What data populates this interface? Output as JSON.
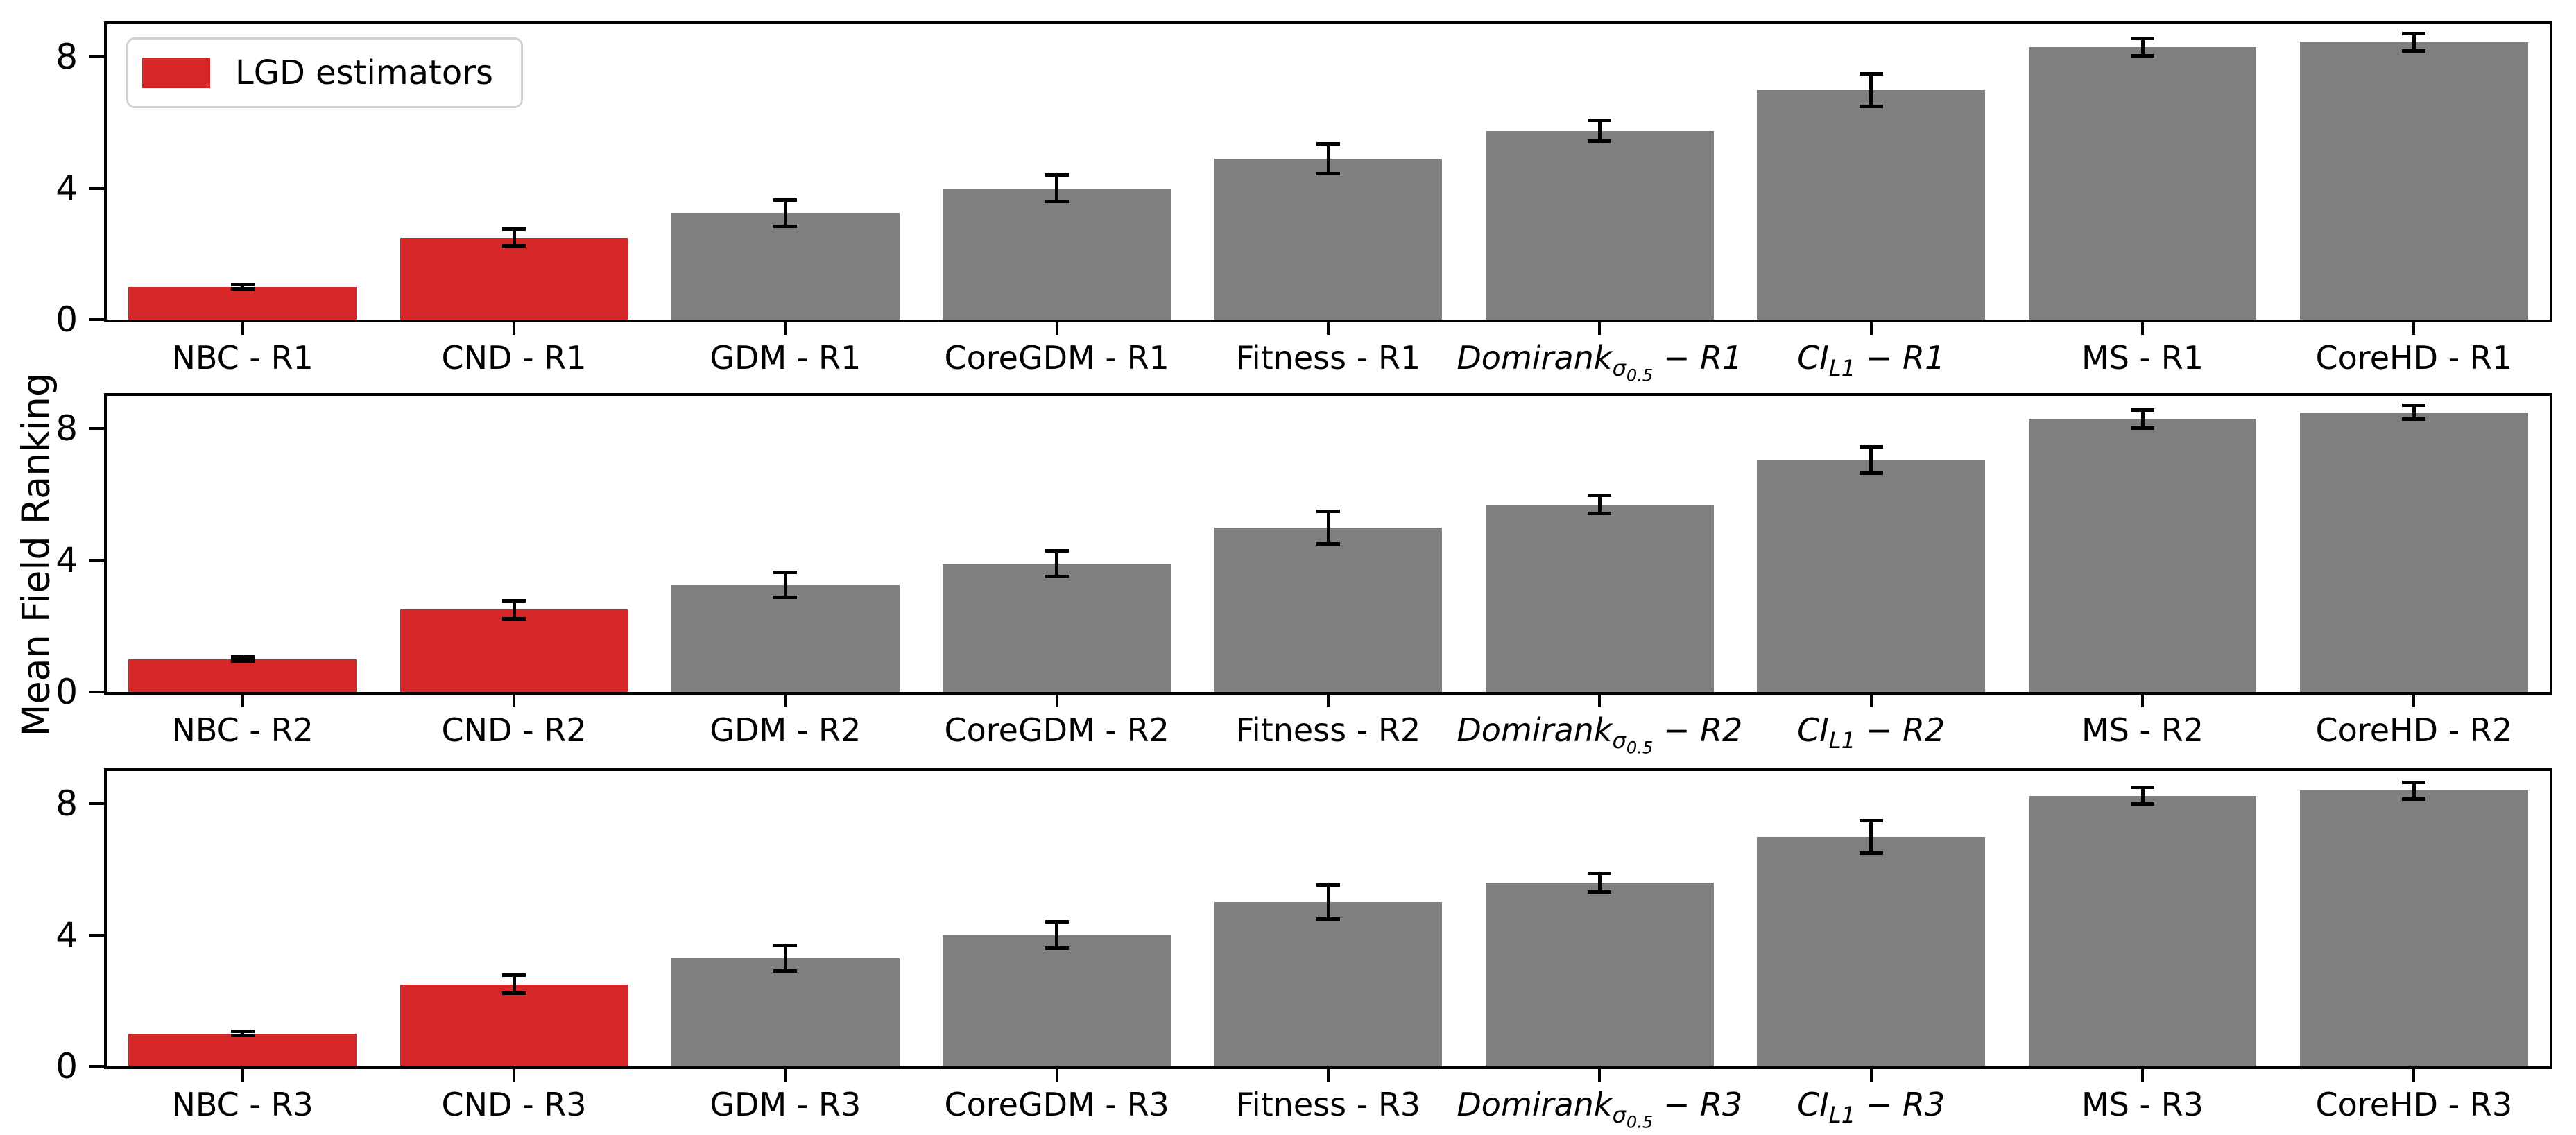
{
  "ylabel": "Mean Field Ranking",
  "legend": {
    "label": "LGD estimators",
    "swatch_color": "#d62728"
  },
  "colors": {
    "lgd_bar": "#d62728",
    "other_bar": "#7f7f7f",
    "axis": "#000000",
    "error_bar": "#000000",
    "legend_border": "#d2d2d2",
    "background": "#ffffff"
  },
  "chart_data": {
    "type": "bar",
    "title": "",
    "ylabel": "Mean Field Ranking",
    "xlabel": "",
    "ylim": [
      0,
      9.0
    ],
    "yticks": [
      0,
      4,
      8
    ],
    "grid": false,
    "legend": {
      "label": "LGD estimators",
      "color": "#d62728",
      "position": "upper left of first panel"
    },
    "panels": [
      {
        "name": "R1",
        "categories": [
          {
            "label": "NBC - R1"
          },
          {
            "label": "CND - R1"
          },
          {
            "label": "GDM - R1"
          },
          {
            "label": "CoreGDM - R1"
          },
          {
            "label": "Fitness - R1"
          },
          {
            "label": "Domirank_σ0.5 − R1",
            "math": {
              "main": "Domirank",
              "sub": "σ",
              "subsub": "0.5",
              "tail": " − R1"
            }
          },
          {
            "label": "CI_L1 − R1",
            "math": {
              "main": "CI",
              "sub": "L1",
              "tail": " − R1"
            }
          },
          {
            "label": "MS - R1"
          },
          {
            "label": "CoreHD - R1"
          }
        ],
        "values": [
          1.0,
          2.5,
          3.25,
          4.0,
          4.9,
          5.75,
          7.0,
          8.3,
          8.45
        ],
        "errors": [
          0.06,
          0.25,
          0.4,
          0.4,
          0.45,
          0.32,
          0.5,
          0.27,
          0.26
        ],
        "bar_colors": [
          "#d62728",
          "#d62728",
          "#7f7f7f",
          "#7f7f7f",
          "#7f7f7f",
          "#7f7f7f",
          "#7f7f7f",
          "#7f7f7f",
          "#7f7f7f"
        ]
      },
      {
        "name": "R2",
        "categories": [
          {
            "label": "NBC - R2"
          },
          {
            "label": "CND - R2"
          },
          {
            "label": "GDM - R2"
          },
          {
            "label": "CoreGDM - R2"
          },
          {
            "label": "Fitness - R2"
          },
          {
            "label": "Domirank_σ0.5 − R2",
            "math": {
              "main": "Domirank",
              "sub": "σ",
              "subsub": "0.5",
              "tail": " − R2"
            }
          },
          {
            "label": "CI_L1 − R2",
            "math": {
              "main": "CI",
              "sub": "L1",
              "tail": " − R2"
            }
          },
          {
            "label": "MS - R2"
          },
          {
            "label": "CoreHD - R2"
          }
        ],
        "values": [
          1.0,
          2.5,
          3.25,
          3.9,
          5.0,
          5.7,
          7.05,
          8.3,
          8.5
        ],
        "errors": [
          0.06,
          0.28,
          0.38,
          0.38,
          0.5,
          0.27,
          0.4,
          0.27,
          0.21
        ],
        "bar_colors": [
          "#d62728",
          "#d62728",
          "#7f7f7f",
          "#7f7f7f",
          "#7f7f7f",
          "#7f7f7f",
          "#7f7f7f",
          "#7f7f7f",
          "#7f7f7f"
        ]
      },
      {
        "name": "R3",
        "categories": [
          {
            "label": "NBC - R3"
          },
          {
            "label": "CND - R3"
          },
          {
            "label": "GDM - R3"
          },
          {
            "label": "CoreGDM - R3"
          },
          {
            "label": "Fitness - R3"
          },
          {
            "label": "Domirank_σ0.5 − R3",
            "math": {
              "main": "Domirank",
              "sub": "σ",
              "subsub": "0.5",
              "tail": " − R3"
            }
          },
          {
            "label": "CI_L1 − R3",
            "math": {
              "main": "CI",
              "sub": "L1",
              "tail": " − R3"
            }
          },
          {
            "label": "MS - R3"
          },
          {
            "label": "CoreHD - R3"
          }
        ],
        "values": [
          1.0,
          2.5,
          3.3,
          4.0,
          5.0,
          5.6,
          7.0,
          8.25,
          8.4
        ],
        "errors": [
          0.06,
          0.28,
          0.39,
          0.4,
          0.52,
          0.28,
          0.5,
          0.26,
          0.26
        ],
        "bar_colors": [
          "#d62728",
          "#d62728",
          "#7f7f7f",
          "#7f7f7f",
          "#7f7f7f",
          "#7f7f7f",
          "#7f7f7f",
          "#7f7f7f",
          "#7f7f7f"
        ]
      }
    ]
  }
}
